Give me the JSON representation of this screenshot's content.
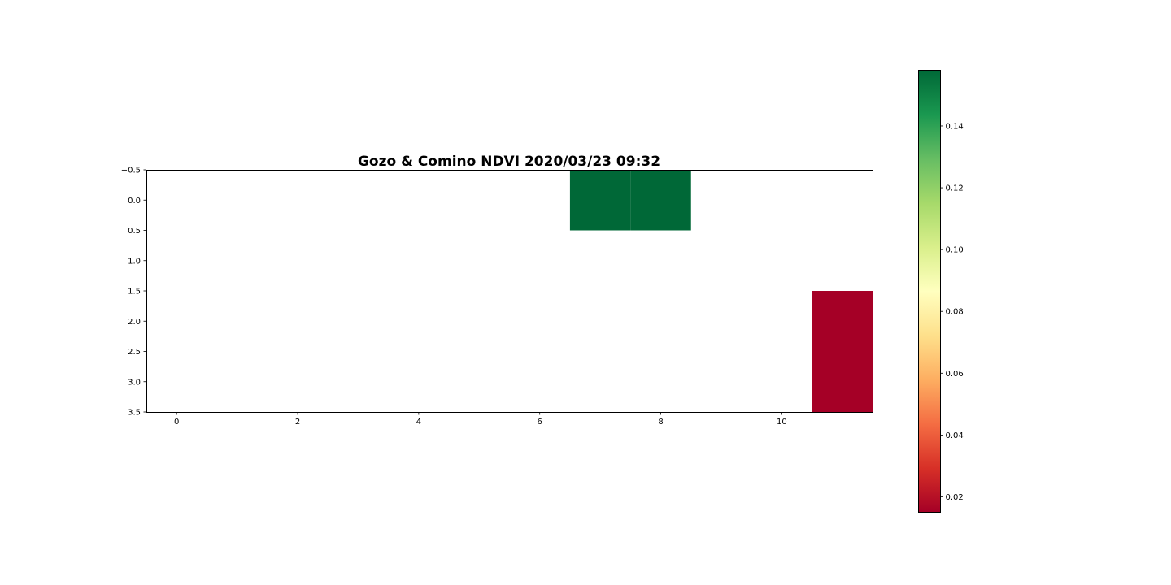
{
  "chart_data": {
    "type": "heatmap",
    "title": "Gozo & Comino NDVI 2020/03/23 09:32",
    "xlabel": "",
    "ylabel": "",
    "xlim": [
      -0.5,
      11.5
    ],
    "ylim": [
      3.5,
      -0.5
    ],
    "x_ticks": [
      0,
      2,
      4,
      6,
      8,
      10
    ],
    "x_tick_labels": [
      "0",
      "2",
      "4",
      "6",
      "8",
      "10"
    ],
    "y_ticks": [
      -0.5,
      0.0,
      0.5,
      1.0,
      1.5,
      2.0,
      2.5,
      3.0,
      3.5
    ],
    "y_tick_labels": [
      "−0.5",
      "0.0",
      "0.5",
      "1.0",
      "1.5",
      "2.0",
      "2.5",
      "3.0",
      "3.5"
    ],
    "grid": false,
    "colormap": "RdYlGn",
    "color_range": [
      0.015,
      0.158
    ],
    "colorbar_ticks": [
      0.02,
      0.04,
      0.06,
      0.08,
      0.1,
      0.12,
      0.14
    ],
    "colorbar_tick_labels": [
      "0.02",
      "0.04",
      "0.06",
      "0.08",
      "0.10",
      "0.12",
      "0.14"
    ],
    "colorbar_position": "right",
    "rows": 4,
    "cols": 12,
    "cells": [
      {
        "row": 0,
        "col": 7,
        "value": 0.158
      },
      {
        "row": 0,
        "col": 8,
        "value": 0.158
      },
      {
        "row": 2,
        "col": 11,
        "value": 0.015
      },
      {
        "row": 3,
        "col": 11,
        "value": 0.015
      }
    ],
    "empty_cell_color": "#ffffff",
    "colors": {
      "high": "#006837",
      "low": "#a50026"
    }
  }
}
